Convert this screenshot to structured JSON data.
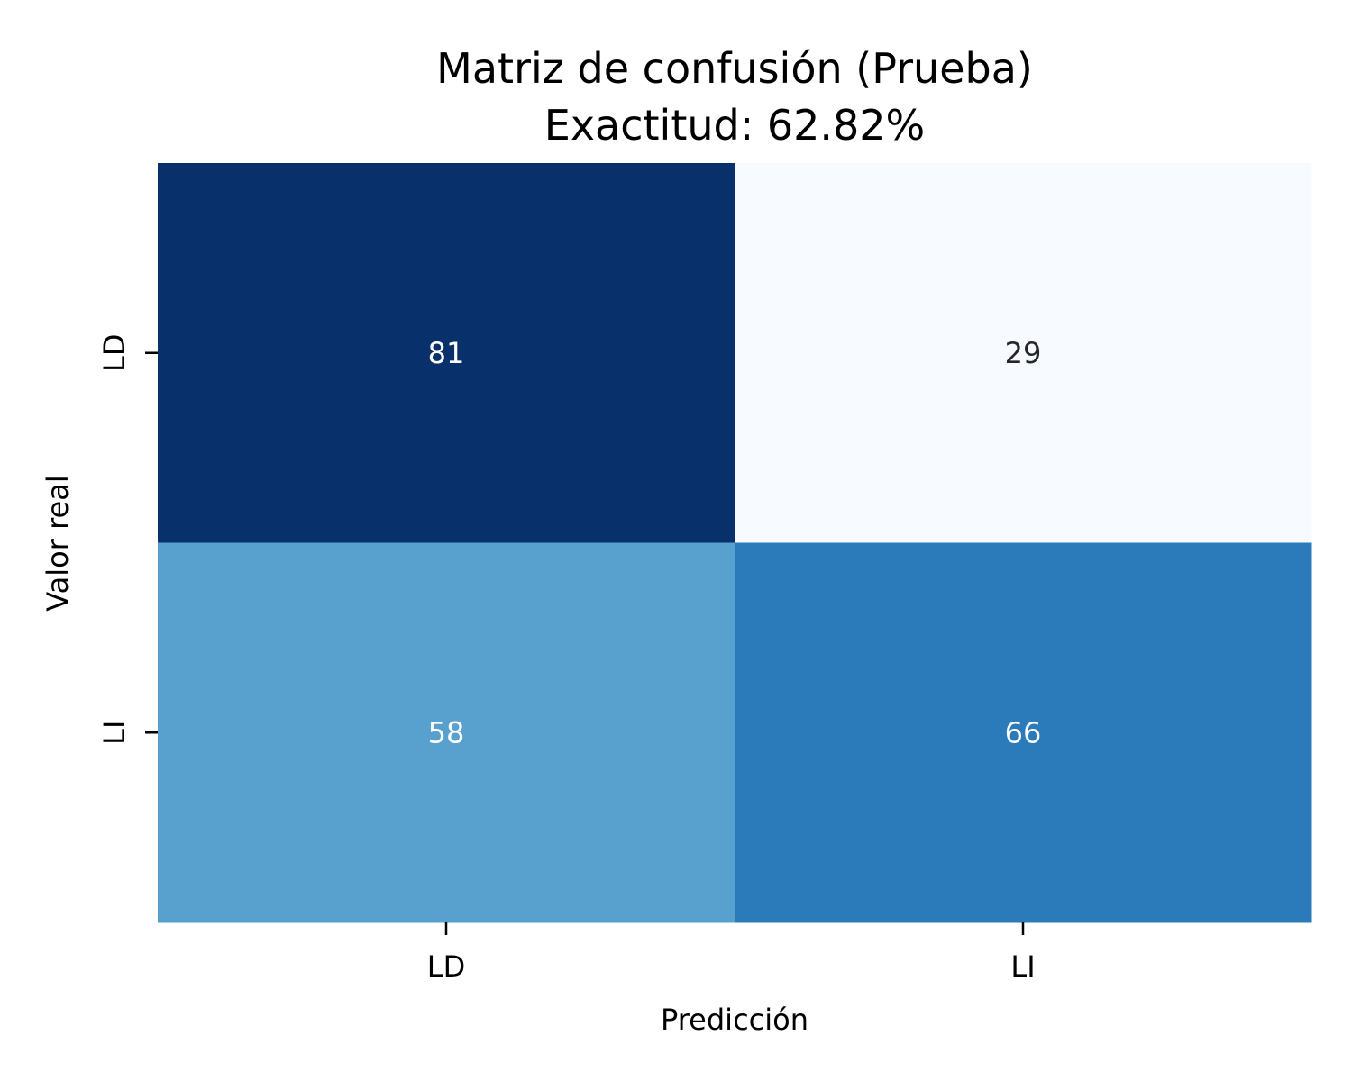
{
  "chart_data": {
    "type": "heatmap",
    "title": "Matriz de confusión (Prueba)",
    "subtitle": "Exactitud: 62.82%",
    "xlabel": "Predicción",
    "ylabel": "Valor real",
    "x_categories": [
      "LD",
      "LI"
    ],
    "y_categories": [
      "LD",
      "LI"
    ],
    "matrix": [
      [
        81,
        29
      ],
      [
        58,
        66
      ]
    ],
    "colormap": "Blues",
    "colorbar": false,
    "grid": false
  }
}
